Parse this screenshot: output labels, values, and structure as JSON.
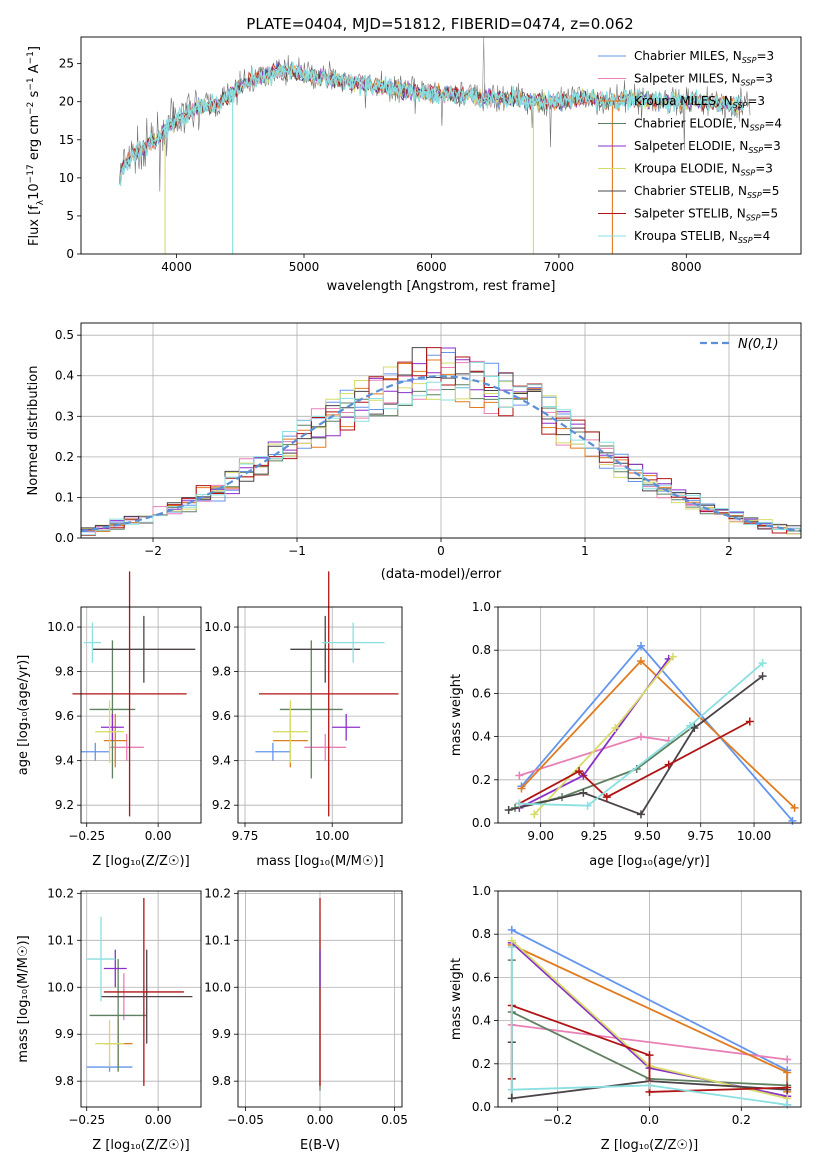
{
  "title": "PLATE=0404, MJD=51812, FIBERID=0474, z=0.062",
  "colors": {
    "Chabrier MILES": "#6495ed",
    "Salpeter MILES": "#e880b6",
    "Kroupa MILES": "#e07b20",
    "Chabrier ELODIE": "#5f8060",
    "Salpeter ELODIE": "#8b2fc9",
    "Kroupa ELODIE": "#d6db6a",
    "Chabrier STELIB": "#4a4448",
    "Salpeter STELIB": "#b01414",
    "Kroupa STELIB": "#8adfe0"
  },
  "chart_data": [
    {
      "type": "line",
      "title": "PLATE=0404, MJD=51812, FIBERID=0474, z=0.062",
      "xlabel": "wavelength [Angstrom, rest frame]",
      "ylabel": "Flux [fλ10^-17 erg cm^-2 s^-1 A^-1]",
      "xlim": [
        3250,
        8900
      ],
      "ylim": [
        0,
        28.5
      ],
      "xticks": [
        4000,
        5000,
        6000,
        7000,
        8000
      ],
      "yticks": [
        0,
        5,
        10,
        15,
        20,
        25
      ],
      "legend_position": "top-right",
      "legend": [
        {
          "model": "Chabrier MILES",
          "prefix": "Chabrier MILES, N",
          "nssp": 3
        },
        {
          "model": "Salpeter MILES",
          "prefix": "Salpeter MILES, N",
          "nssp": 3
        },
        {
          "model": "Kroupa MILES",
          "prefix": "Kroupa MILES, N",
          "nssp": 3
        },
        {
          "model": "Chabrier ELODIE",
          "prefix": "Chabrier ELODIE, N",
          "nssp": 4
        },
        {
          "model": "Salpeter ELODIE",
          "prefix": "Salpeter ELODIE, N",
          "nssp": 3
        },
        {
          "model": "Kroupa ELODIE",
          "prefix": "Kroupa ELODIE, N",
          "nssp": 3
        },
        {
          "model": "Chabrier STELIB",
          "prefix": "Chabrier STELIB, N",
          "nssp": 5
        },
        {
          "model": "Salpeter STELIB",
          "prefix": "Salpeter STELIB, N",
          "nssp": 5
        },
        {
          "model": "Kroupa STELIB",
          "prefix": "Kroupa STELIB, N",
          "nssp": 4
        }
      ],
      "spectrum_envelope": [
        [
          3550,
          10
        ],
        [
          3600,
          12
        ],
        [
          3700,
          13.5
        ],
        [
          3800,
          14.5
        ],
        [
          3900,
          16
        ],
        [
          4000,
          17.5
        ],
        [
          4100,
          18.5
        ],
        [
          4200,
          19.5
        ],
        [
          4300,
          19.5
        ],
        [
          4400,
          20.5
        ],
        [
          4500,
          22
        ],
        [
          4600,
          23
        ],
        [
          4700,
          23.5
        ],
        [
          4800,
          24
        ],
        [
          4900,
          24
        ],
        [
          5000,
          23.5
        ],
        [
          5200,
          23
        ],
        [
          5400,
          22.5
        ],
        [
          5600,
          22
        ],
        [
          5800,
          21.5
        ],
        [
          6000,
          21
        ],
        [
          6200,
          21
        ],
        [
          6400,
          20.5
        ],
        [
          6600,
          20.5
        ],
        [
          6800,
          20
        ],
        [
          7000,
          20
        ],
        [
          7200,
          20.5
        ],
        [
          7400,
          20
        ],
        [
          7600,
          20.5
        ],
        [
          7800,
          20
        ],
        [
          8000,
          20
        ],
        [
          8200,
          20
        ],
        [
          8400,
          19.5
        ],
        [
          8500,
          19.5
        ]
      ]
    },
    {
      "type": "histogram",
      "xlabel": "(data-model)/error",
      "ylabel": "Normed distribution",
      "xlim": [
        -2.5,
        2.5
      ],
      "ylim": [
        0,
        0.53
      ],
      "xticks": [
        -2,
        -1,
        0,
        1,
        2
      ],
      "yticks": [
        0.0,
        0.1,
        0.2,
        0.3,
        0.4,
        0.5
      ],
      "legend_label": "N(0,1)",
      "legend_position": "top-right",
      "normal_curve": {
        "mean": 0,
        "sd": 1
      }
    },
    {
      "type": "scatter",
      "panel": "age-vs-Z",
      "xlabel": "Z [log10(Z/Z☉)]",
      "ylabel": "age  [log10(age/yr)]",
      "xlim": [
        -0.27,
        0.15
      ],
      "ylim": [
        9.12,
        10.09
      ],
      "xticks": [
        -0.25,
        0.0
      ],
      "yticks": [
        9.2,
        9.4,
        9.6,
        9.8,
        10.0
      ],
      "points": [
        {
          "model": "Chabrier MILES",
          "x": -0.22,
          "xerr": 0.05,
          "y": 9.44,
          "yerr": 0.04
        },
        {
          "model": "Salpeter MILES",
          "x": -0.11,
          "xerr": 0.06,
          "y": 9.46,
          "yerr": 0.06
        },
        {
          "model": "Kroupa MILES",
          "x": -0.15,
          "xerr": 0.04,
          "y": 9.49,
          "yerr": 0.12
        },
        {
          "model": "Chabrier ELODIE",
          "x": -0.16,
          "xerr": 0.08,
          "y": 9.63,
          "yerr": 0.31
        },
        {
          "model": "Salpeter ELODIE",
          "x": -0.16,
          "xerr": 0.04,
          "y": 9.55,
          "yerr": 0.06
        },
        {
          "model": "Kroupa ELODIE",
          "x": -0.17,
          "xerr": 0.05,
          "y": 9.53,
          "yerr": 0.14
        },
        {
          "model": "Chabrier STELIB",
          "x": -0.05,
          "xerr": 0.18,
          "y": 9.9,
          "yerr": 0.15
        },
        {
          "model": "Salpeter STELIB",
          "x": -0.1,
          "xerr": 0.2,
          "y": 9.7,
          "yerr": 0.55
        },
        {
          "model": "Kroupa STELIB",
          "x": -0.23,
          "xerr": 0.03,
          "y": 9.93,
          "yerr": 0.09
        }
      ]
    },
    {
      "type": "scatter",
      "panel": "age-vs-mass",
      "xlabel": "mass [log10(M/M☉)]",
      "xlim": [
        9.73,
        10.2
      ],
      "ylim": [
        9.12,
        10.09
      ],
      "xticks": [
        9.75,
        10.0
      ],
      "yticks": [
        9.2,
        9.4,
        9.6,
        9.8,
        10.0
      ],
      "points": [
        {
          "model": "Chabrier MILES",
          "x": 9.83,
          "xerr": 0.05,
          "y": 9.44,
          "yerr": 0.04
        },
        {
          "model": "Salpeter MILES",
          "x": 9.98,
          "xerr": 0.06,
          "y": 9.46,
          "yerr": 0.06
        },
        {
          "model": "Kroupa MILES",
          "x": 9.88,
          "xerr": 0.05,
          "y": 9.49,
          "yerr": 0.12
        },
        {
          "model": "Chabrier ELODIE",
          "x": 9.94,
          "xerr": 0.09,
          "y": 9.63,
          "yerr": 0.31
        },
        {
          "model": "Salpeter ELODIE",
          "x": 10.04,
          "xerr": 0.04,
          "y": 9.55,
          "yerr": 0.06
        },
        {
          "model": "Kroupa ELODIE",
          "x": 9.88,
          "xerr": 0.05,
          "y": 9.53,
          "yerr": 0.14
        },
        {
          "model": "Chabrier STELIB",
          "x": 9.98,
          "xerr": 0.1,
          "y": 9.9,
          "yerr": 0.15
        },
        {
          "model": "Salpeter STELIB",
          "x": 9.99,
          "xerr": 0.2,
          "y": 9.7,
          "yerr": 0.55
        },
        {
          "model": "Kroupa STELIB",
          "x": 10.06,
          "xerr": 0.09,
          "y": 9.93,
          "yerr": 0.09
        }
      ]
    },
    {
      "type": "line",
      "panel": "weight-vs-age",
      "xlabel": "age  [log10(age/yr)]",
      "ylabel": "mass weight",
      "xlim": [
        8.8,
        10.22
      ],
      "ylim": [
        0,
        1
      ],
      "xticks": [
        9.0,
        9.25,
        9.5,
        9.75,
        10.0
      ],
      "yticks": [
        0.0,
        0.2,
        0.4,
        0.6,
        0.8,
        1.0
      ],
      "series": [
        {
          "model": "Chabrier MILES",
          "points": [
            [
              8.91,
              0.17
            ],
            [
              9.47,
              0.82
            ],
            [
              10.18,
              0.01
            ]
          ]
        },
        {
          "model": "Salpeter MILES",
          "points": [
            [
              8.9,
              0.22
            ],
            [
              9.47,
              0.4
            ],
            [
              9.6,
              0.38
            ]
          ]
        },
        {
          "model": "Kroupa MILES",
          "points": [
            [
              8.91,
              0.16
            ],
            [
              9.47,
              0.75
            ],
            [
              10.19,
              0.07
            ]
          ]
        },
        {
          "model": "Chabrier ELODIE",
          "points": [
            [
              8.88,
              0.07
            ],
            [
              9.1,
              0.12
            ],
            [
              9.45,
              0.25
            ],
            [
              9.72,
              0.45
            ]
          ]
        },
        {
          "model": "Salpeter ELODIE",
          "points": [
            [
              8.9,
              0.07
            ],
            [
              9.2,
              0.22
            ],
            [
              9.6,
              0.76
            ]
          ]
        },
        {
          "model": "Kroupa ELODIE",
          "points": [
            [
              8.97,
              0.04
            ],
            [
              9.35,
              0.44
            ],
            [
              9.62,
              0.77
            ]
          ]
        },
        {
          "model": "Chabrier STELIB",
          "points": [
            [
              8.85,
              0.06
            ],
            [
              9.2,
              0.14
            ],
            [
              9.47,
              0.04
            ],
            [
              9.72,
              0.44
            ],
            [
              10.04,
              0.68
            ]
          ]
        },
        {
          "model": "Salpeter STELIB",
          "points": [
            [
              8.9,
              0.09
            ],
            [
              9.18,
              0.24
            ],
            [
              9.31,
              0.12
            ],
            [
              9.6,
              0.27
            ],
            [
              9.98,
              0.47
            ]
          ]
        },
        {
          "model": "Kroupa STELIB",
          "points": [
            [
              8.9,
              0.09
            ],
            [
              9.22,
              0.08
            ],
            [
              9.7,
              0.45
            ],
            [
              10.04,
              0.74
            ]
          ]
        }
      ]
    },
    {
      "type": "scatter",
      "panel": "mass-vs-Z",
      "xlabel": "Z [log10(Z/Z☉)]",
      "ylabel": "mass [log10(M/M☉)]",
      "xlim": [
        -0.27,
        0.15
      ],
      "ylim": [
        9.745,
        10.205
      ],
      "xticks": [
        -0.25,
        0.0
      ],
      "yticks": [
        9.8,
        9.9,
        10.0,
        10.1,
        10.2
      ],
      "points": [
        {
          "model": "Chabrier MILES",
          "x": -0.17,
          "xerr": 0.08,
          "y": 9.83,
          "yerr": 0.01
        },
        {
          "model": "Salpeter MILES",
          "x": -0.12,
          "xerr": 0.06,
          "y": 9.98,
          "yerr": 0.05
        },
        {
          "model": "Kroupa MILES",
          "x": -0.14,
          "xerr": 0.05,
          "y": 9.88,
          "yerr": 0.05
        },
        {
          "model": "Chabrier ELODIE",
          "x": -0.14,
          "xerr": 0.1,
          "y": 9.94,
          "yerr": 0.12
        },
        {
          "model": "Salpeter ELODIE",
          "x": -0.15,
          "xerr": 0.04,
          "y": 10.04,
          "yerr": 0.04
        },
        {
          "model": "Kroupa ELODIE",
          "x": -0.17,
          "xerr": 0.05,
          "y": 9.88,
          "yerr": 0.05
        },
        {
          "model": "Chabrier STELIB",
          "x": -0.04,
          "xerr": 0.16,
          "y": 9.98,
          "yerr": 0.1
        },
        {
          "model": "Salpeter STELIB",
          "x": -0.05,
          "xerr": 0.14,
          "y": 9.99,
          "yerr": 0.2
        },
        {
          "model": "Kroupa STELIB",
          "x": -0.2,
          "xerr": 0.05,
          "y": 10.06,
          "yerr": 0.09
        }
      ]
    },
    {
      "type": "scatter",
      "panel": "mass-vs-EBV",
      "xlabel": "E(B-V)",
      "xlim": [
        -0.055,
        0.055
      ],
      "ylim": [
        9.745,
        10.205
      ],
      "xticks": [
        -0.05,
        0.0,
        0.05
      ],
      "yticks": [
        9.8,
        9.9,
        10.0,
        10.1,
        10.2
      ],
      "points": [
        {
          "model": "Chabrier ELODIE",
          "x": 0,
          "y": 9.93,
          "yerr": 0.15
        },
        {
          "model": "Kroupa STELIB",
          "x": 0,
          "y": 10.06,
          "yerr": 0.09
        },
        {
          "model": "Salpeter STELIB",
          "x": 0,
          "y": 9.99,
          "yerr": 0.2
        },
        {
          "model": "Salpeter ELODIE",
          "x": 0,
          "y": 10.04,
          "yerr": 0.04
        }
      ]
    },
    {
      "type": "line",
      "panel": "weight-vs-Z",
      "xlabel": "Z [log10(Z/Z☉)]",
      "ylabel": "mass weight",
      "xlim": [
        -0.33,
        0.33
      ],
      "ylim": [
        0,
        1
      ],
      "xticks": [
        -0.2,
        0.0,
        0.2
      ],
      "yticks": [
        0.0,
        0.2,
        0.4,
        0.6,
        0.8,
        1.0
      ],
      "series": [
        {
          "model": "Chabrier MILES",
          "points": [
            [
              -0.3,
              0.82
            ],
            [
              0.3,
              0.17
            ],
            [
              0.3,
              0.01
            ]
          ]
        },
        {
          "model": "Salpeter MILES",
          "points": [
            [
              -0.3,
              0.38
            ],
            [
              0.3,
              0.22
            ]
          ]
        },
        {
          "model": "Kroupa MILES",
          "points": [
            [
              -0.3,
              0.75
            ],
            [
              0.3,
              0.16
            ],
            [
              0.3,
              0.07
            ]
          ]
        },
        {
          "model": "Chabrier ELODIE",
          "points": [
            [
              -0.3,
              0.68
            ],
            [
              -0.3,
              0.44
            ],
            [
              0.0,
              0.13
            ],
            [
              0.3,
              0.1
            ]
          ]
        },
        {
          "model": "Salpeter ELODIE",
          "points": [
            [
              -0.3,
              0.76
            ],
            [
              0.0,
              0.18
            ],
            [
              0.3,
              0.05
            ]
          ]
        },
        {
          "model": "Kroupa ELODIE",
          "points": [
            [
              -0.3,
              0.77
            ],
            [
              0.0,
              0.19
            ],
            [
              0.3,
              0.04
            ]
          ]
        },
        {
          "model": "Chabrier STELIB",
          "points": [
            [
              -0.3,
              0.3
            ],
            [
              -0.3,
              0.04
            ],
            [
              0.0,
              0.12
            ],
            [
              0.3,
              0.08
            ]
          ]
        },
        {
          "model": "Salpeter STELIB",
          "points": [
            [
              -0.3,
              0.13
            ],
            [
              -0.3,
              0.47
            ],
            [
              0.0,
              0.24
            ],
            [
              0.0,
              0.07
            ],
            [
              0.3,
              0.09
            ]
          ]
        },
        {
          "model": "Kroupa STELIB",
          "points": [
            [
              -0.3,
              0.74
            ],
            [
              -0.3,
              0.08
            ],
            [
              0.0,
              0.1
            ],
            [
              0.3,
              0.01
            ]
          ]
        }
      ]
    }
  ]
}
